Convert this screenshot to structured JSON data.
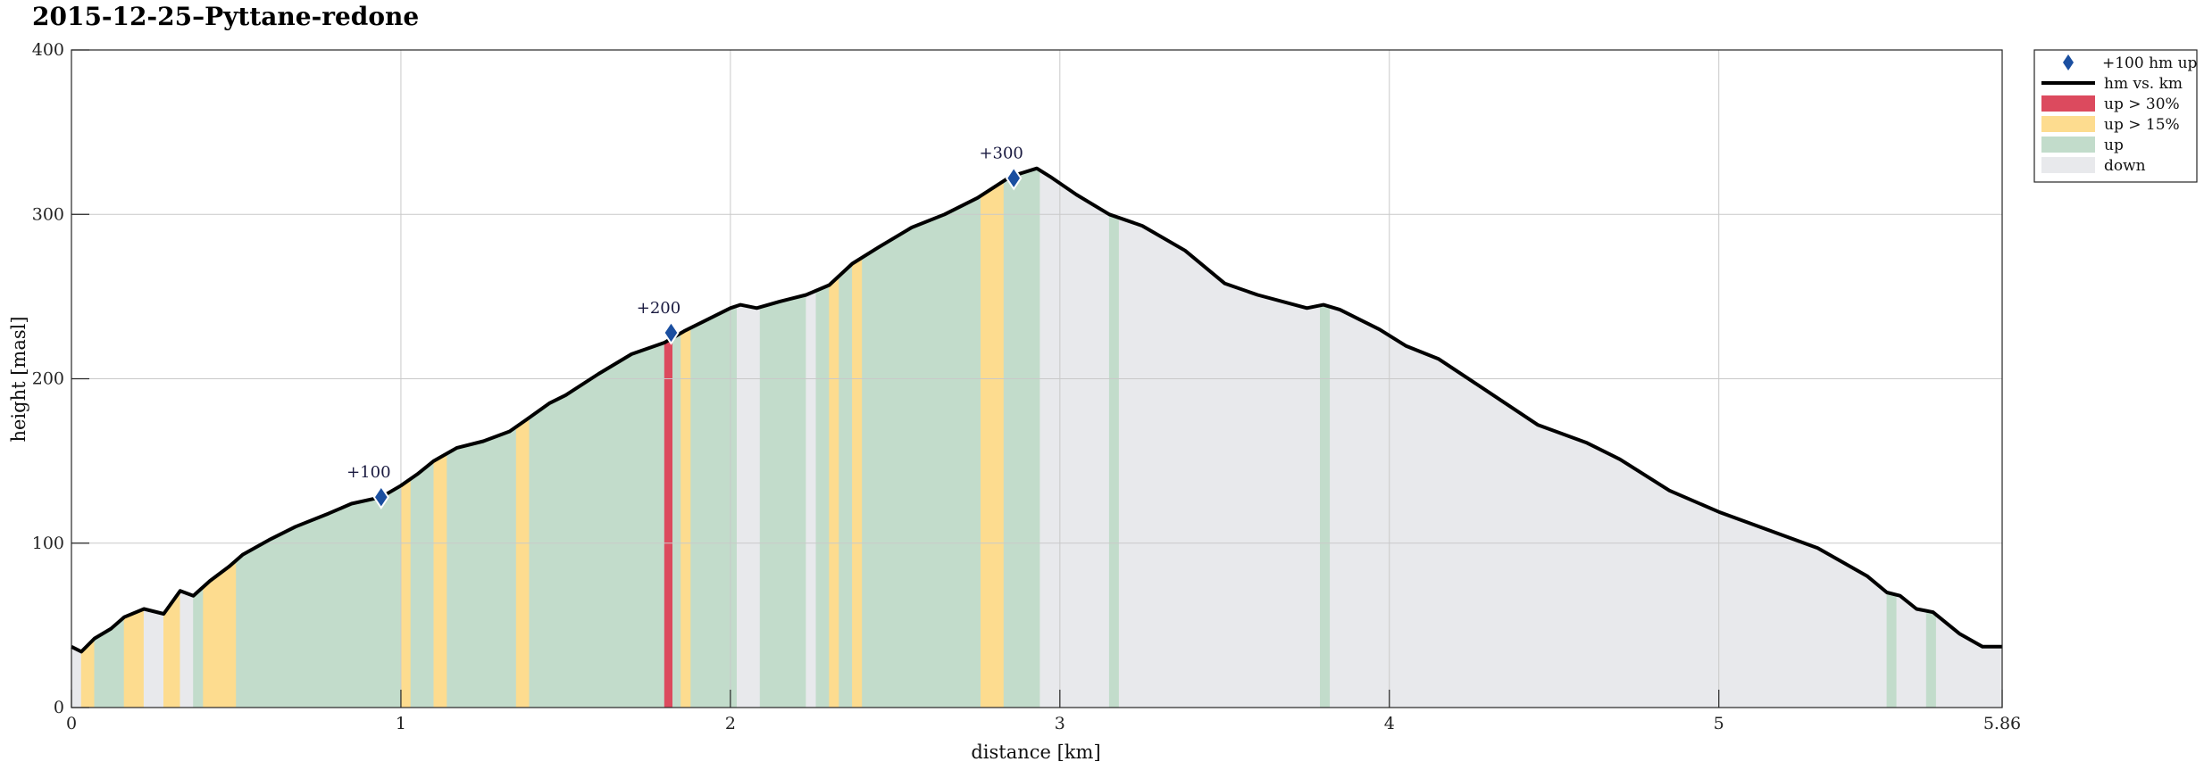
{
  "chart_data": {
    "type": "area",
    "title": "2015-12-25–Pyttane-redone",
    "xlabel": "distance [km]",
    "ylabel": "height [masl]",
    "xlim": [
      0,
      5.86
    ],
    "ylim": [
      0,
      400
    ],
    "xticks": [
      0,
      1,
      2,
      3,
      4,
      5,
      5.86
    ],
    "xtick_labels": [
      "0",
      "1",
      "2",
      "3",
      "4",
      "5",
      "5.86"
    ],
    "yticks": [
      0,
      100,
      200,
      300,
      400
    ],
    "ytick_labels": [
      "0",
      "100",
      "200",
      "300",
      "400"
    ],
    "grid": true,
    "legend_position": "outside-top-right",
    "colors": {
      "steep": "#dc4a5e",
      "moderate": "#fddc8f",
      "up": "#c2dccb",
      "down": "#e8e9ec",
      "line": "#000000",
      "marker": "#1b4fa0"
    },
    "profile": {
      "name": "hm vs. km",
      "x": [
        0,
        0.03,
        0.07,
        0.12,
        0.16,
        0.22,
        0.28,
        0.33,
        0.37,
        0.42,
        0.48,
        0.52,
        0.6,
        0.68,
        0.78,
        0.85,
        0.94,
        1.0,
        1.05,
        1.1,
        1.17,
        1.25,
        1.33,
        1.38,
        1.45,
        1.5,
        1.6,
        1.7,
        1.8,
        1.86,
        1.93,
        2.0,
        2.03,
        2.08,
        2.15,
        2.23,
        2.3,
        2.37,
        2.45,
        2.55,
        2.65,
        2.75,
        2.85,
        2.93,
        2.97,
        3.05,
        3.15,
        3.25,
        3.38,
        3.5,
        3.6,
        3.75,
        3.8,
        3.85,
        3.97,
        4.05,
        4.15,
        4.3,
        4.45,
        4.6,
        4.7,
        4.85,
        5.0,
        5.15,
        5.3,
        5.45,
        5.51,
        5.55,
        5.6,
        5.65,
        5.73,
        5.8,
        5.86
      ],
      "y": [
        37,
        34,
        42,
        48,
        55,
        60,
        57,
        71,
        68,
        77,
        86,
        93,
        102,
        110,
        118,
        124,
        128,
        135,
        142,
        150,
        158,
        162,
        168,
        175,
        185,
        190,
        203,
        215,
        222,
        229,
        236,
        243,
        245,
        243,
        247,
        251,
        257,
        270,
        280,
        292,
        300,
        310,
        323,
        328,
        323,
        312,
        300,
        293,
        278,
        258,
        251,
        243,
        245,
        242,
        230,
        220,
        212,
        192,
        172,
        161,
        151,
        132,
        119,
        108,
        97,
        80,
        70,
        68,
        60,
        58,
        45,
        37,
        37
      ]
    },
    "segments": [
      {
        "x0": 0.0,
        "x1": 0.03,
        "cat": "down"
      },
      {
        "x0": 0.03,
        "x1": 0.07,
        "cat": "moderate"
      },
      {
        "x0": 0.07,
        "x1": 0.16,
        "cat": "up"
      },
      {
        "x0": 0.16,
        "x1": 0.22,
        "cat": "moderate"
      },
      {
        "x0": 0.22,
        "x1": 0.28,
        "cat": "down"
      },
      {
        "x0": 0.28,
        "x1": 0.33,
        "cat": "moderate"
      },
      {
        "x0": 0.33,
        "x1": 0.37,
        "cat": "down"
      },
      {
        "x0": 0.37,
        "x1": 0.4,
        "cat": "up"
      },
      {
        "x0": 0.4,
        "x1": 0.5,
        "cat": "moderate"
      },
      {
        "x0": 0.5,
        "x1": 1.0,
        "cat": "up"
      },
      {
        "x0": 1.0,
        "x1": 1.03,
        "cat": "moderate"
      },
      {
        "x0": 1.03,
        "x1": 1.1,
        "cat": "up"
      },
      {
        "x0": 1.1,
        "x1": 1.14,
        "cat": "moderate"
      },
      {
        "x0": 1.14,
        "x1": 1.35,
        "cat": "up"
      },
      {
        "x0": 1.35,
        "x1": 1.39,
        "cat": "moderate"
      },
      {
        "x0": 1.39,
        "x1": 1.8,
        "cat": "up"
      },
      {
        "x0": 1.8,
        "x1": 1.825,
        "cat": "steep"
      },
      {
        "x0": 1.825,
        "x1": 1.85,
        "cat": "up"
      },
      {
        "x0": 1.85,
        "x1": 1.88,
        "cat": "moderate"
      },
      {
        "x0": 1.88,
        "x1": 2.02,
        "cat": "up"
      },
      {
        "x0": 2.02,
        "x1": 2.09,
        "cat": "down"
      },
      {
        "x0": 2.09,
        "x1": 2.23,
        "cat": "up"
      },
      {
        "x0": 2.23,
        "x1": 2.26,
        "cat": "down"
      },
      {
        "x0": 2.26,
        "x1": 2.3,
        "cat": "up"
      },
      {
        "x0": 2.3,
        "x1": 2.33,
        "cat": "moderate"
      },
      {
        "x0": 2.33,
        "x1": 2.37,
        "cat": "up"
      },
      {
        "x0": 2.37,
        "x1": 2.4,
        "cat": "moderate"
      },
      {
        "x0": 2.4,
        "x1": 2.76,
        "cat": "up"
      },
      {
        "x0": 2.76,
        "x1": 2.83,
        "cat": "moderate"
      },
      {
        "x0": 2.83,
        "x1": 2.94,
        "cat": "up"
      },
      {
        "x0": 2.94,
        "x1": 3.15,
        "cat": "down"
      },
      {
        "x0": 3.15,
        "x1": 3.18,
        "cat": "up"
      },
      {
        "x0": 3.18,
        "x1": 3.79,
        "cat": "down"
      },
      {
        "x0": 3.79,
        "x1": 3.82,
        "cat": "up"
      },
      {
        "x0": 3.82,
        "x1": 5.51,
        "cat": "down"
      },
      {
        "x0": 5.51,
        "x1": 5.54,
        "cat": "up"
      },
      {
        "x0": 5.54,
        "x1": 5.63,
        "cat": "down"
      },
      {
        "x0": 5.63,
        "x1": 5.66,
        "cat": "up"
      },
      {
        "x0": 5.66,
        "x1": 5.86,
        "cat": "down"
      }
    ],
    "markers": [
      {
        "x": 0.94,
        "y": 128,
        "label": "+100"
      },
      {
        "x": 1.82,
        "y": 228,
        "label": "+200"
      },
      {
        "x": 2.86,
        "y": 322,
        "label": "+300"
      }
    ],
    "legend": [
      {
        "label": "+100 hm up",
        "kind": "marker"
      },
      {
        "label": "hm vs. km",
        "kind": "line"
      },
      {
        "label": "up > 30%",
        "kind": "steep"
      },
      {
        "label": "up > 15%",
        "kind": "moderate"
      },
      {
        "label": "up",
        "kind": "up"
      },
      {
        "label": "down",
        "kind": "down"
      }
    ]
  }
}
